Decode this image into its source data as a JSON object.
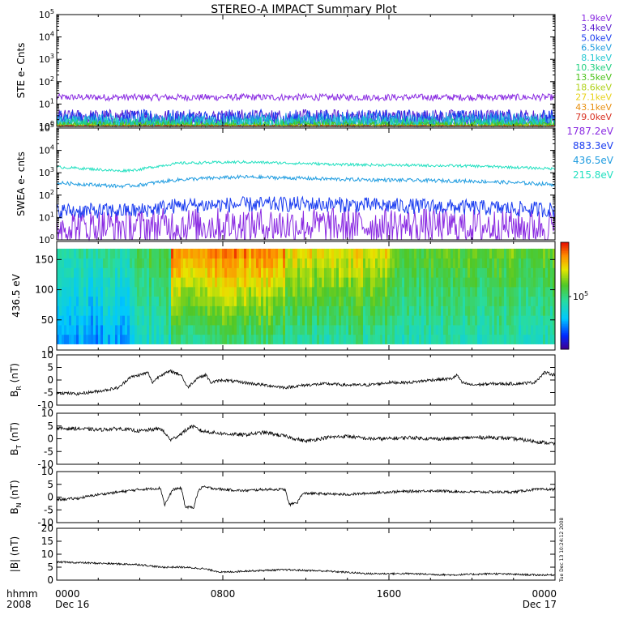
{
  "title": "STEREO-A IMPACT Summary Plot",
  "timestamp": "Tue Dec 13 10:24:12 2008",
  "x_axis": {
    "unit_label": "hhmm",
    "year": "2008",
    "ticks": [
      "0000",
      "0800",
      "1600",
      "0000"
    ],
    "dates": [
      "Dec 16",
      "",
      "",
      "Dec 17"
    ]
  },
  "colors": {
    "ste": [
      "#8a2be2",
      "#5a1fd0",
      "#1a3cf0",
      "#1f9ce0",
      "#22c8d2",
      "#20d080",
      "#4cc21a",
      "#b0d21a",
      "#e8d21a",
      "#e89010",
      "#d83020"
    ],
    "swea": [
      "#8a2be2",
      "#1a3cf0",
      "#1f9ce0",
      "#22e0c0"
    ],
    "line": "#000000"
  },
  "chart_data": [
    {
      "type": "line",
      "panel": "ste",
      "ylabel": "STE e- Cnts",
      "yscale": "log",
      "ylim": [
        1,
        100000
      ],
      "ytick_labels": [
        "10^0",
        "10^1",
        "10^2",
        "10^3",
        "10^4",
        "10^5"
      ],
      "xlim_hours": [
        0,
        24
      ],
      "series": [
        {
          "name": "1.9keV",
          "level": 20,
          "noise": 0.15
        },
        {
          "name": "3.4keV",
          "level": 2.6,
          "noise": 0.35
        },
        {
          "name": "5.0keV",
          "level": 2.0,
          "noise": 0.45
        },
        {
          "name": "6.5keV",
          "level": 1.6,
          "noise": 0.4
        },
        {
          "name": "8.1keV",
          "level": 1.3,
          "noise": 0.35
        },
        {
          "name": "10.3keV",
          "level": 1.15,
          "noise": 0.3
        },
        {
          "name": "13.5keV",
          "level": 1.05,
          "noise": 0.2
        },
        {
          "name": "18.6keV",
          "level": 1.0,
          "noise": 0.1
        },
        {
          "name": "27.1keV",
          "level": 1.0,
          "noise": 0.05
        },
        {
          "name": "43.1keV",
          "level": 1.0,
          "noise": 0.05
        },
        {
          "name": "79.0keV",
          "level": 1.0,
          "noise": 0.05
        }
      ]
    },
    {
      "type": "line",
      "panel": "swea",
      "ylabel": "SWEA e- cnts",
      "yscale": "log",
      "ylim": [
        1,
        100000
      ],
      "ytick_labels": [
        "10^0",
        "10^1",
        "10^2",
        "10^3",
        "10^4",
        "10^5"
      ],
      "xlim_hours": [
        0,
        24
      ],
      "series": [
        {
          "name": "1787.2eV",
          "profile": [
            [
              0,
              4
            ],
            [
              4,
              4
            ],
            [
              6,
              4.5
            ],
            [
              12,
              4.5
            ],
            [
              20,
              4
            ],
            [
              24,
              4
            ]
          ],
          "noise": 0.8
        },
        {
          "name": "883.3eV",
          "profile": [
            [
              0,
              20
            ],
            [
              4,
              20
            ],
            [
              6,
              35
            ],
            [
              12,
              40
            ],
            [
              20,
              28
            ],
            [
              24,
              22
            ]
          ],
          "noise": 0.35
        },
        {
          "name": "436.5eV",
          "profile": [
            [
              0,
              350
            ],
            [
              3,
              250
            ],
            [
              4,
              280
            ],
            [
              6,
              500
            ],
            [
              9,
              650
            ],
            [
              14,
              500
            ],
            [
              20,
              420
            ],
            [
              24,
              300
            ]
          ],
          "noise": 0.08
        },
        {
          "name": "215.8eV",
          "profile": [
            [
              0,
              1800
            ],
            [
              3,
              1200
            ],
            [
              4,
              1400
            ],
            [
              6,
              2700
            ],
            [
              9,
              3000
            ],
            [
              14,
              2300
            ],
            [
              20,
              2000
            ],
            [
              24,
              1500
            ]
          ],
          "noise": 0.06
        }
      ]
    },
    {
      "type": "heatmap",
      "panel": "pad",
      "ylabel": "436.5 eV",
      "ylim": [
        0,
        180
      ],
      "yticks": [
        0,
        50,
        100,
        150
      ],
      "colorbar_label": "10^5",
      "xlim_hours": [
        0,
        24
      ],
      "segments": [
        {
          "t0": 0,
          "t1": 3.8,
          "low": 0.25,
          "high": 0.45
        },
        {
          "t0": 3.8,
          "t1": 5.5,
          "low": 0.4,
          "high": 0.55
        },
        {
          "t0": 5.5,
          "t1": 11,
          "low": 0.5,
          "high": 0.88
        },
        {
          "t0": 11,
          "t1": 16,
          "low": 0.45,
          "high": 0.75
        },
        {
          "t0": 16,
          "t1": 24,
          "low": 0.42,
          "high": 0.6
        }
      ]
    },
    {
      "type": "line",
      "panel": "br",
      "ylabel": "B_R (nT)",
      "ylim": [
        -10,
        10
      ],
      "yticks": [
        -10,
        -5,
        0,
        5,
        10
      ],
      "xlim_hours": [
        0,
        24
      ],
      "points": [
        [
          0,
          -5
        ],
        [
          1,
          -5.5
        ],
        [
          2,
          -4.5
        ],
        [
          3,
          -3
        ],
        [
          3.5,
          1
        ],
        [
          4,
          2
        ],
        [
          4.4,
          3
        ],
        [
          4.6,
          -1
        ],
        [
          5,
          2
        ],
        [
          5.5,
          3.5
        ],
        [
          6,
          2
        ],
        [
          6.3,
          -3
        ],
        [
          6.8,
          1
        ],
        [
          7.2,
          2
        ],
        [
          7.4,
          -1
        ],
        [
          8,
          0
        ],
        [
          9,
          -1
        ],
        [
          10,
          -2
        ],
        [
          11,
          -3
        ],
        [
          12,
          -2
        ],
        [
          13,
          -1.5
        ],
        [
          14,
          -2
        ],
        [
          15,
          -2
        ],
        [
          16,
          -1
        ],
        [
          17,
          -1
        ],
        [
          18,
          0
        ],
        [
          19,
          0.5
        ],
        [
          19.3,
          2
        ],
        [
          19.5,
          -1
        ],
        [
          20,
          -2
        ],
        [
          21,
          -1.5
        ],
        [
          22,
          -1.5
        ],
        [
          23,
          -1
        ],
        [
          23.5,
          3
        ],
        [
          24,
          2
        ]
      ],
      "noise": 0.6
    },
    {
      "type": "line",
      "panel": "bt",
      "ylabel": "B_T (nT)",
      "ylim": [
        -10,
        10
      ],
      "yticks": [
        -10,
        -5,
        0,
        5,
        10
      ],
      "xlim_hours": [
        0,
        24
      ],
      "points": [
        [
          0,
          4
        ],
        [
          1,
          4
        ],
        [
          2,
          3.5
        ],
        [
          3,
          4
        ],
        [
          4,
          3
        ],
        [
          5,
          4
        ],
        [
          5.5,
          -0.5
        ],
        [
          6,
          2
        ],
        [
          6.5,
          5
        ],
        [
          7,
          3
        ],
        [
          8,
          2
        ],
        [
          9,
          1.5
        ],
        [
          10,
          2.5
        ],
        [
          11,
          1
        ],
        [
          12,
          -1
        ],
        [
          13,
          0.5
        ],
        [
          14,
          1
        ],
        [
          15,
          0
        ],
        [
          16,
          0
        ],
        [
          17,
          0.5
        ],
        [
          18,
          0
        ],
        [
          19,
          0
        ],
        [
          20,
          0.5
        ],
        [
          21,
          0.5
        ],
        [
          22,
          0
        ],
        [
          23,
          -1
        ],
        [
          24,
          -2
        ]
      ],
      "noise": 0.7
    },
    {
      "type": "line",
      "panel": "bn",
      "ylabel": "B_N (nT)",
      "ylim": [
        -10,
        10
      ],
      "yticks": [
        -10,
        -5,
        0,
        5,
        10
      ],
      "xlim_hours": [
        0,
        24
      ],
      "points": [
        [
          0,
          -1
        ],
        [
          1,
          -0.5
        ],
        [
          2,
          1
        ],
        [
          3,
          2
        ],
        [
          4,
          3
        ],
        [
          5,
          3.5
        ],
        [
          5.2,
          -3
        ],
        [
          5.6,
          3
        ],
        [
          6,
          3.5
        ],
        [
          6.2,
          -4
        ],
        [
          6.6,
          -4
        ],
        [
          6.8,
          2
        ],
        [
          7,
          4
        ],
        [
          8,
          3
        ],
        [
          9,
          2.5
        ],
        [
          10,
          3
        ],
        [
          11,
          3
        ],
        [
          11.2,
          -3
        ],
        [
          11.6,
          -2
        ],
        [
          11.8,
          1
        ],
        [
          12,
          1.5
        ],
        [
          14,
          1
        ],
        [
          16,
          2
        ],
        [
          18,
          2.5
        ],
        [
          20,
          2
        ],
        [
          22,
          2
        ],
        [
          23,
          3
        ],
        [
          24,
          3
        ]
      ],
      "noise": 0.5
    },
    {
      "type": "line",
      "panel": "bmag",
      "ylabel": "|B| (nT)",
      "ylim": [
        0,
        20
      ],
      "yticks": [
        0,
        5,
        10,
        15,
        20
      ],
      "xlim_hours": [
        0,
        24
      ],
      "points": [
        [
          0,
          7
        ],
        [
          2,
          6.5
        ],
        [
          4,
          6
        ],
        [
          5,
          5
        ],
        [
          6,
          5
        ],
        [
          7,
          4.5
        ],
        [
          8,
          3
        ],
        [
          9,
          3.5
        ],
        [
          11,
          4
        ],
        [
          13,
          3.5
        ],
        [
          15,
          2.5
        ],
        [
          17,
          2.5
        ],
        [
          19,
          2
        ],
        [
          21,
          2.5
        ],
        [
          23,
          2
        ],
        [
          24,
          2
        ]
      ],
      "noise": 0.35
    }
  ]
}
